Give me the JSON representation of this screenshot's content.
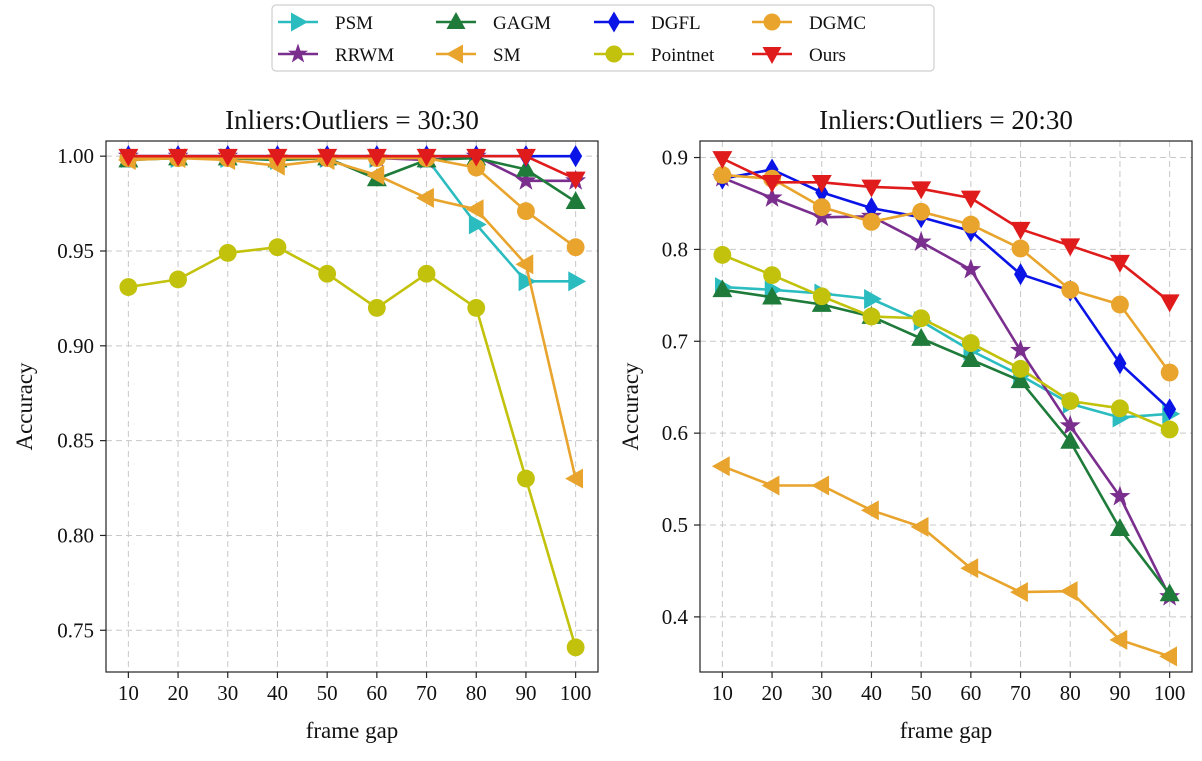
{
  "legend": [
    {
      "name": "PSM",
      "color": "#2bbcc0",
      "marker": "tri-right"
    },
    {
      "name": "RRWM",
      "color": "#7a2e8e",
      "marker": "star"
    },
    {
      "name": "GAGM",
      "color": "#1e7b3a",
      "marker": "tri-up"
    },
    {
      "name": "SM",
      "color": "#e8a42c",
      "marker": "tri-left"
    },
    {
      "name": "DGFL",
      "color": "#0a14e6",
      "marker": "diamond"
    },
    {
      "name": "Pointnet",
      "color": "#c2c20c",
      "marker": "circle"
    },
    {
      "name": "DGMC",
      "color": "#e8a42c",
      "marker": "circle"
    },
    {
      "name": "Ours",
      "color": "#e01b1b",
      "marker": "tri-down"
    }
  ],
  "chart_data": [
    {
      "type": "line",
      "title": "Inliers:Outliers = 30:30",
      "xlabel": "frame gap",
      "ylabel": "Accuracy",
      "x": [
        10,
        20,
        30,
        40,
        50,
        60,
        70,
        80,
        90,
        100
      ],
      "xticks": [
        "10",
        "20",
        "30",
        "40",
        "50",
        "60",
        "70",
        "80",
        "90",
        "100"
      ],
      "ylim": [
        0.728,
        1.008
      ],
      "yticks": [
        "0.75",
        "0.80",
        "0.85",
        "0.90",
        "0.95",
        "1.00"
      ],
      "series": [
        {
          "name": "PSM",
          "values": [
            0.999,
            0.999,
            0.999,
            0.998,
            0.999,
            0.999,
            0.999,
            0.964,
            0.934,
            0.934
          ]
        },
        {
          "name": "RRWM",
          "values": [
            1.0,
            1.0,
            1.0,
            0.999,
            0.999,
            0.999,
            0.998,
            1.0,
            0.987,
            0.987
          ]
        },
        {
          "name": "GAGM",
          "values": [
            0.998,
            0.999,
            0.999,
            0.998,
            0.999,
            0.988,
            0.998,
            0.999,
            0.993,
            0.976
          ]
        },
        {
          "name": "SM",
          "values": [
            0.998,
            0.999,
            0.998,
            0.995,
            0.998,
            0.99,
            0.978,
            0.972,
            0.943,
            0.83
          ]
        },
        {
          "name": "DGFL",
          "values": [
            1.0,
            1.0,
            1.0,
            1.0,
            1.0,
            1.0,
            1.0,
            1.0,
            1.0,
            1.0
          ]
        },
        {
          "name": "Pointnet",
          "values": [
            0.931,
            0.935,
            0.949,
            0.952,
            0.938,
            0.92,
            0.938,
            0.92,
            0.83,
            0.741
          ]
        },
        {
          "name": "DGMC",
          "values": [
            0.999,
            0.999,
            0.999,
            0.999,
            0.999,
            0.999,
            0.999,
            0.994,
            0.971,
            0.952
          ]
        },
        {
          "name": "Ours",
          "values": [
            1.0,
            1.0,
            1.0,
            1.0,
            1.0,
            1.0,
            1.0,
            1.0,
            1.0,
            0.988
          ]
        }
      ]
    },
    {
      "type": "line",
      "title": "Inliers:Outliers = 20:30",
      "xlabel": "frame gap",
      "ylabel": "Accuracy",
      "x": [
        10,
        20,
        30,
        40,
        50,
        60,
        70,
        80,
        90,
        100
      ],
      "xticks": [
        "10",
        "20",
        "30",
        "40",
        "50",
        "60",
        "70",
        "80",
        "90",
        "100"
      ],
      "ylim": [
        0.34,
        0.918
      ],
      "yticks": [
        "0.4",
        "0.5",
        "0.6",
        "0.7",
        "0.8",
        "0.9"
      ],
      "series": [
        {
          "name": "PSM",
          "values": [
            0.759,
            0.756,
            0.752,
            0.746,
            0.722,
            0.69,
            0.663,
            0.632,
            0.617,
            0.621
          ]
        },
        {
          "name": "RRWM",
          "values": [
            0.878,
            0.856,
            0.835,
            0.836,
            0.808,
            0.778,
            0.69,
            0.608,
            0.531,
            0.422
          ]
        },
        {
          "name": "GAGM",
          "values": [
            0.756,
            0.748,
            0.74,
            0.727,
            0.703,
            0.68,
            0.657,
            0.591,
            0.496,
            0.425
          ]
        },
        {
          "name": "SM",
          "values": [
            0.564,
            0.543,
            0.543,
            0.516,
            0.498,
            0.453,
            0.427,
            0.428,
            0.375,
            0.357
          ]
        },
        {
          "name": "DGFL",
          "values": [
            0.877,
            0.887,
            0.862,
            0.845,
            0.835,
            0.82,
            0.773,
            0.755,
            0.676,
            0.626
          ]
        },
        {
          "name": "Pointnet",
          "values": [
            0.794,
            0.772,
            0.749,
            0.727,
            0.725,
            0.698,
            0.67,
            0.635,
            0.627,
            0.604
          ]
        },
        {
          "name": "DGMC",
          "values": [
            0.881,
            0.877,
            0.846,
            0.83,
            0.841,
            0.827,
            0.801,
            0.756,
            0.74,
            0.666
          ]
        },
        {
          "name": "Ours",
          "values": [
            0.899,
            0.873,
            0.873,
            0.868,
            0.866,
            0.856,
            0.822,
            0.804,
            0.786,
            0.743
          ]
        }
      ]
    }
  ]
}
